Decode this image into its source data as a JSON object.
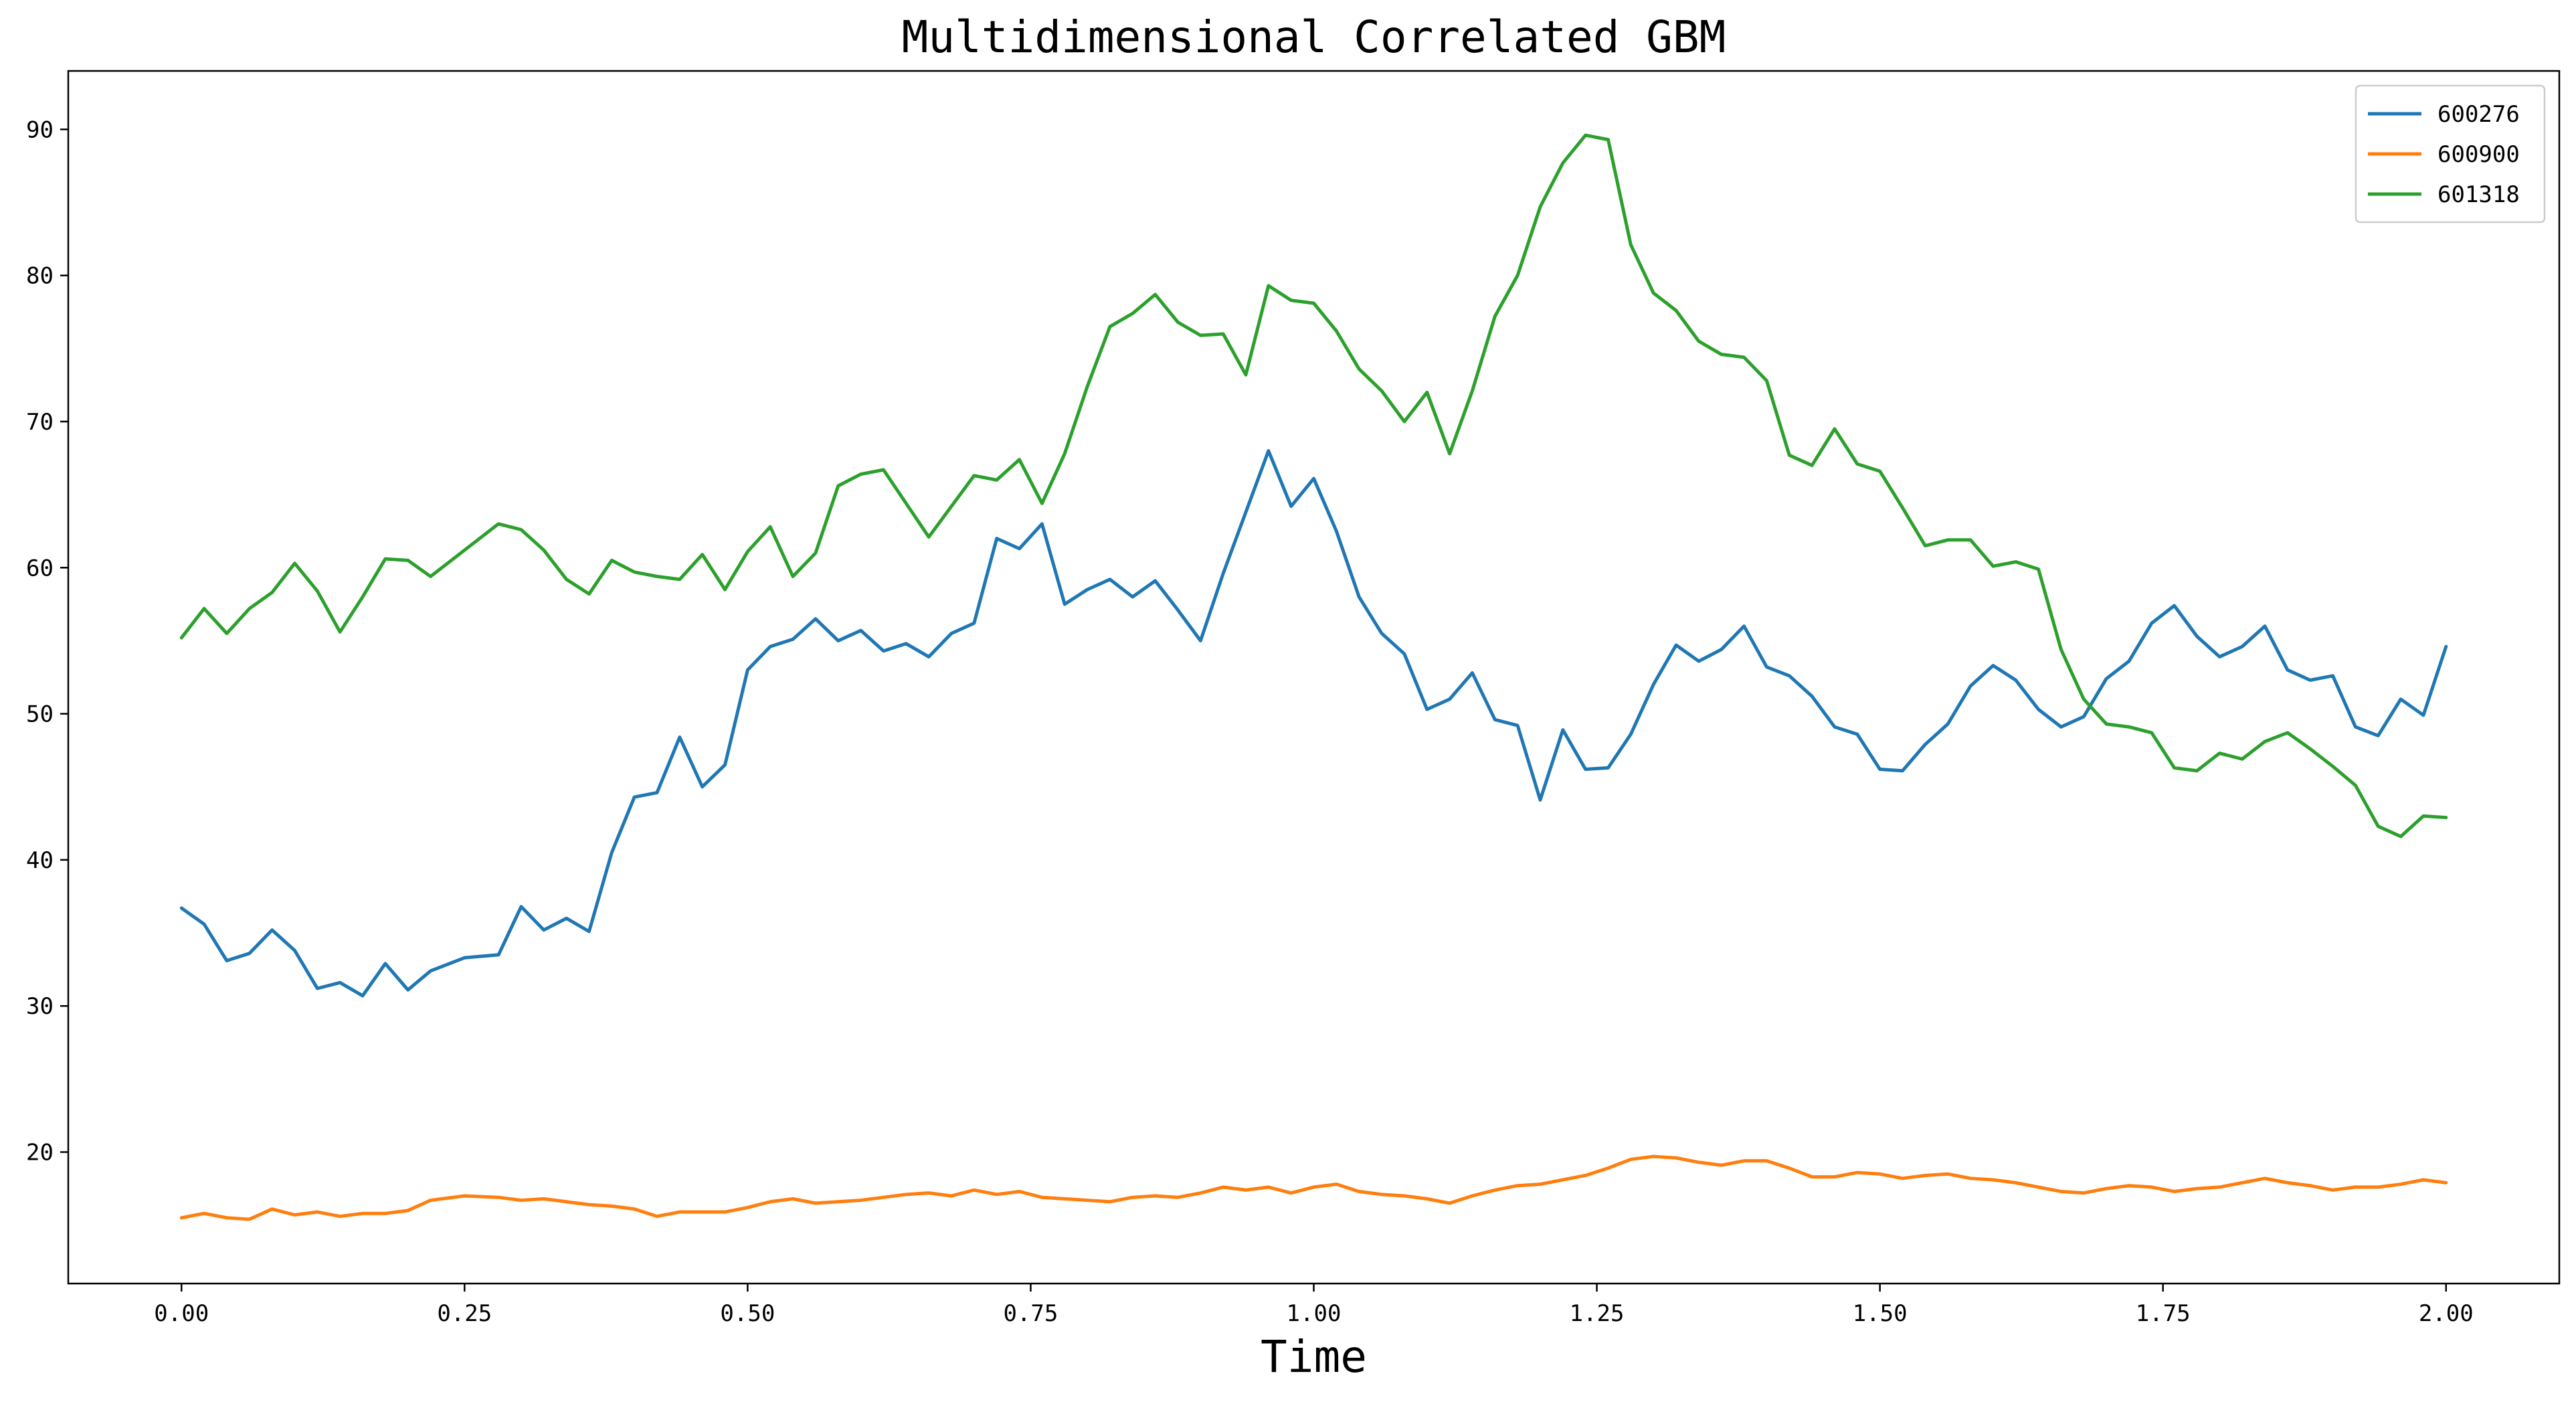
{
  "chart_data": {
    "type": "line",
    "title": "Multidimensional Correlated GBM",
    "xlabel": "Time",
    "ylabel": "",
    "xlim": [
      -0.1,
      2.1
    ],
    "ylim": [
      11.0,
      94.0
    ],
    "xticks": [
      0.0,
      0.25,
      0.5,
      0.75,
      1.0,
      1.25,
      1.5,
      1.75,
      2.0
    ],
    "xtick_labels": [
      "0.00",
      "0.25",
      "0.50",
      "0.75",
      "1.00",
      "1.25",
      "1.50",
      "1.75",
      "2.00"
    ],
    "yticks": [
      20,
      30,
      40,
      50,
      60,
      70,
      80,
      90
    ],
    "ytick_labels": [
      "20",
      "30",
      "40",
      "50",
      "60",
      "70",
      "80",
      "90"
    ],
    "grid": false,
    "legend_position": "top-right",
    "series": [
      {
        "name": "600276",
        "color": "#1f77b4",
        "x": [
          0.0,
          0.02,
          0.04,
          0.06,
          0.08,
          0.1,
          0.12,
          0.14,
          0.16,
          0.18,
          0.2,
          0.22,
          0.25,
          0.28,
          0.3,
          0.32,
          0.34,
          0.36,
          0.38,
          0.4,
          0.42,
          0.44,
          0.46,
          0.48,
          0.5,
          0.52,
          0.54,
          0.56,
          0.58,
          0.6,
          0.62,
          0.64,
          0.66,
          0.68,
          0.7,
          0.72,
          0.74,
          0.76,
          0.78,
          0.8,
          0.82,
          0.84,
          0.86,
          0.88,
          0.9,
          0.92,
          0.94,
          0.96,
          0.98,
          1.0,
          1.02,
          1.04,
          1.06,
          1.08,
          1.1,
          1.12,
          1.14,
          1.16,
          1.18,
          1.2,
          1.22,
          1.24,
          1.26,
          1.28,
          1.3,
          1.32,
          1.34,
          1.36,
          1.38,
          1.4,
          1.42,
          1.44,
          1.46,
          1.48,
          1.5,
          1.52,
          1.54,
          1.56,
          1.58,
          1.6,
          1.62,
          1.64,
          1.66,
          1.68,
          1.7,
          1.72,
          1.74,
          1.76,
          1.78,
          1.8,
          1.82,
          1.84,
          1.86,
          1.88,
          1.9,
          1.92,
          1.94,
          1.96,
          1.98,
          2.0
        ],
        "y": [
          36.7,
          35.6,
          33.1,
          33.6,
          35.2,
          33.8,
          31.2,
          31.6,
          30.7,
          32.9,
          31.1,
          32.4,
          33.3,
          33.5,
          36.8,
          35.2,
          36.0,
          35.1,
          40.5,
          44.3,
          44.6,
          48.4,
          45.0,
          46.5,
          53.0,
          54.6,
          55.1,
          56.5,
          55.0,
          55.7,
          54.3,
          54.8,
          53.9,
          55.5,
          56.2,
          62.0,
          61.3,
          63.0,
          57.5,
          58.5,
          59.2,
          58.0,
          59.1,
          57.1,
          55.0,
          59.6,
          63.8,
          68.0,
          64.2,
          66.1,
          62.5,
          58.0,
          55.5,
          54.1,
          50.3,
          51.0,
          52.8,
          49.6,
          49.2,
          44.1,
          48.9,
          46.2,
          46.3,
          48.6,
          52.0,
          54.7,
          53.6,
          54.4,
          56.0,
          53.2,
          52.6,
          51.2,
          49.1,
          48.6,
          46.2,
          46.1,
          47.9,
          49.3,
          51.9,
          53.3,
          52.3,
          50.3,
          49.1,
          49.8,
          52.4,
          53.6,
          56.2,
          57.4,
          55.3,
          53.9,
          54.6,
          56.0,
          53.0,
          52.3,
          52.6,
          49.1,
          48.5,
          51.0,
          49.9,
          54.6
        ]
      },
      {
        "name": "600900",
        "color": "#ff7f0e",
        "x": [
          0.0,
          0.02,
          0.04,
          0.06,
          0.08,
          0.1,
          0.12,
          0.14,
          0.16,
          0.18,
          0.2,
          0.22,
          0.25,
          0.28,
          0.3,
          0.32,
          0.34,
          0.36,
          0.38,
          0.4,
          0.42,
          0.44,
          0.46,
          0.48,
          0.5,
          0.52,
          0.54,
          0.56,
          0.58,
          0.6,
          0.62,
          0.64,
          0.66,
          0.68,
          0.7,
          0.72,
          0.74,
          0.76,
          0.78,
          0.8,
          0.82,
          0.84,
          0.86,
          0.88,
          0.9,
          0.92,
          0.94,
          0.96,
          0.98,
          1.0,
          1.02,
          1.04,
          1.06,
          1.08,
          1.1,
          1.12,
          1.14,
          1.16,
          1.18,
          1.2,
          1.22,
          1.24,
          1.26,
          1.28,
          1.3,
          1.32,
          1.34,
          1.36,
          1.38,
          1.4,
          1.42,
          1.44,
          1.46,
          1.48,
          1.5,
          1.52,
          1.54,
          1.56,
          1.58,
          1.6,
          1.62,
          1.64,
          1.66,
          1.68,
          1.7,
          1.72,
          1.74,
          1.76,
          1.78,
          1.8,
          1.82,
          1.84,
          1.86,
          1.88,
          1.9,
          1.92,
          1.94,
          1.96,
          1.98,
          2.0
        ],
        "y": [
          15.5,
          15.8,
          15.5,
          15.4,
          16.1,
          15.7,
          15.9,
          15.6,
          15.8,
          15.8,
          16.0,
          16.7,
          17.0,
          16.9,
          16.7,
          16.8,
          16.6,
          16.4,
          16.3,
          16.1,
          15.6,
          15.9,
          15.9,
          15.9,
          16.2,
          16.6,
          16.8,
          16.5,
          16.6,
          16.7,
          16.9,
          17.1,
          17.2,
          17.0,
          17.4,
          17.1,
          17.3,
          16.9,
          16.8,
          16.7,
          16.6,
          16.9,
          17.0,
          16.9,
          17.2,
          17.6,
          17.4,
          17.6,
          17.2,
          17.6,
          17.8,
          17.3,
          17.1,
          17.0,
          16.8,
          16.5,
          17.0,
          17.4,
          17.7,
          17.8,
          18.1,
          18.4,
          18.9,
          19.5,
          19.7,
          19.6,
          19.3,
          19.1,
          19.4,
          19.4,
          18.9,
          18.3,
          18.3,
          18.6,
          18.5,
          18.2,
          18.4,
          18.5,
          18.2,
          18.1,
          17.9,
          17.6,
          17.3,
          17.2,
          17.5,
          17.7,
          17.6,
          17.3,
          17.5,
          17.6,
          17.9,
          18.2,
          17.9,
          17.7,
          17.4,
          17.6,
          17.6,
          17.8,
          18.1,
          17.9
        ]
      },
      {
        "name": "601318",
        "color": "#2ca02c",
        "x": [
          0.0,
          0.02,
          0.04,
          0.06,
          0.08,
          0.1,
          0.12,
          0.14,
          0.16,
          0.18,
          0.2,
          0.22,
          0.25,
          0.28,
          0.3,
          0.32,
          0.34,
          0.36,
          0.38,
          0.4,
          0.42,
          0.44,
          0.46,
          0.48,
          0.5,
          0.52,
          0.54,
          0.56,
          0.58,
          0.6,
          0.62,
          0.64,
          0.66,
          0.68,
          0.7,
          0.72,
          0.74,
          0.76,
          0.78,
          0.8,
          0.82,
          0.84,
          0.86,
          0.88,
          0.9,
          0.92,
          0.94,
          0.96,
          0.98,
          1.0,
          1.02,
          1.04,
          1.06,
          1.08,
          1.1,
          1.12,
          1.14,
          1.16,
          1.18,
          1.2,
          1.22,
          1.24,
          1.26,
          1.28,
          1.3,
          1.32,
          1.34,
          1.36,
          1.38,
          1.4,
          1.42,
          1.44,
          1.46,
          1.48,
          1.5,
          1.52,
          1.54,
          1.56,
          1.58,
          1.6,
          1.62,
          1.64,
          1.66,
          1.68,
          1.7,
          1.72,
          1.74,
          1.76,
          1.78,
          1.8,
          1.82,
          1.84,
          1.86,
          1.88,
          1.9,
          1.92,
          1.94,
          1.96,
          1.98,
          2.0
        ],
        "y": [
          55.2,
          57.2,
          55.5,
          57.2,
          58.3,
          60.3,
          58.4,
          55.6,
          58.0,
          60.6,
          60.5,
          59.4,
          61.2,
          63.0,
          62.6,
          61.2,
          59.2,
          58.2,
          60.5,
          59.7,
          59.4,
          59.2,
          60.9,
          58.5,
          61.1,
          62.8,
          59.4,
          61.0,
          65.6,
          66.4,
          66.7,
          64.4,
          62.1,
          64.2,
          66.3,
          66.0,
          67.4,
          64.4,
          67.8,
          72.4,
          76.5,
          77.4,
          78.7,
          76.8,
          75.9,
          76.0,
          73.2,
          79.3,
          78.3,
          78.1,
          76.2,
          73.6,
          72.1,
          70.0,
          72.0,
          67.8,
          72.1,
          77.2,
          80.0,
          84.7,
          87.7,
          89.6,
          89.3,
          82.1,
          78.8,
          77.6,
          75.5,
          74.6,
          74.4,
          72.8,
          67.7,
          67.0,
          69.5,
          67.1,
          66.6,
          64.1,
          61.5,
          61.9,
          61.9,
          60.1,
          60.4,
          59.9,
          54.4,
          51.0,
          49.3,
          49.1,
          48.7,
          46.3,
          46.1,
          47.3,
          46.9,
          48.1,
          48.7,
          47.6,
          46.4,
          45.1,
          42.3,
          41.6,
          43.0,
          42.9
        ]
      }
    ]
  }
}
